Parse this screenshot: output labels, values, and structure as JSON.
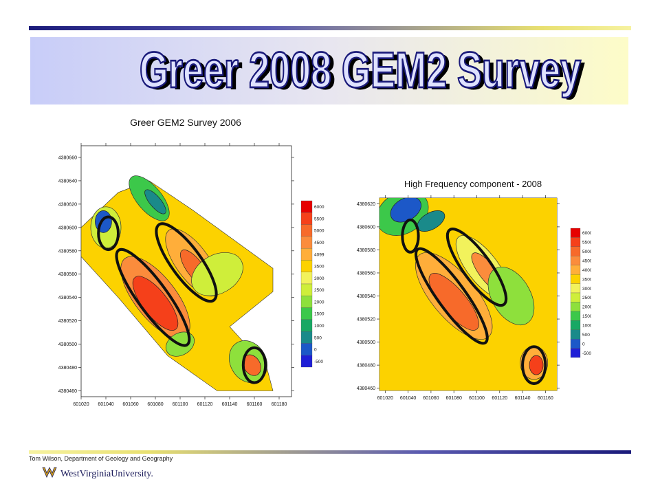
{
  "slide_title": "Greer 2008 GEM2 Survey",
  "footer": {
    "author": "Tom Wilson, Department of Geology and Geography",
    "logo_text": "WestVirginiaUniversity."
  },
  "colors": {
    "background": "#ffcc00",
    "accent_navy": "#1a1a7a",
    "title_fill": "#dfe2ff",
    "ellipse": "#111111"
  },
  "chart_data": [
    {
      "type": "heatmap",
      "title": "Greer GEM2 Survey 2006",
      "x_ticks": [
        "601020",
        "601040",
        "601060",
        "601080",
        "601100",
        "601120",
        "601140",
        "601160",
        "601180"
      ],
      "y_ticks": [
        "4380660",
        "4380640",
        "4380620",
        "4380600",
        "4380580",
        "4380560",
        "4380540",
        "4380520",
        "4380500",
        "4380480",
        "4380460"
      ],
      "xlim": [
        601020,
        601190
      ],
      "ylim": [
        4380455,
        4380670
      ],
      "colorbar": {
        "labels": [
          "6000",
          "5500",
          "5000",
          "4500",
          "4099",
          "3500",
          "3000",
          "2500",
          "2000",
          "1500",
          "1000",
          "500",
          "0",
          "-500"
        ],
        "colors": [
          "#e60000",
          "#f5401a",
          "#f76a2a",
          "#fb8c3c",
          "#ffae3a",
          "#fcd200",
          "#f2f25c",
          "#cfee3a",
          "#8ee03c",
          "#3cc84a",
          "#18a864",
          "#1a8a8a",
          "#1c58c8",
          "#1f1fd6"
        ]
      },
      "features": [
        {
          "name": "ellipse-nw",
          "center": [
            601042,
            4380595
          ],
          "rx": 8,
          "ry": 14
        },
        {
          "name": "ellipse-sw-long",
          "center": [
            601078,
            4380540
          ],
          "rx": 12,
          "ry": 50
        },
        {
          "name": "ellipse-ne-long",
          "center": [
            601105,
            4380570
          ],
          "rx": 12,
          "ry": 40
        },
        {
          "name": "ellipse-se",
          "center": [
            601160,
            4380482
          ],
          "rx": 9,
          "ry": 15
        }
      ]
    },
    {
      "type": "heatmap",
      "title": "High Frequency component - 2008",
      "x_ticks": [
        "601020",
        "601040",
        "601060",
        "601080",
        "601100",
        "601120",
        "601140",
        "601160"
      ],
      "y_ticks": [
        "4380620",
        "4380600",
        "4380580",
        "4380560",
        "4380540",
        "4380520",
        "4380500",
        "4380480",
        "4380460"
      ],
      "xlim": [
        601015,
        601170
      ],
      "ylim": [
        4380458,
        4380625
      ],
      "colorbar": {
        "labels": [
          "6000",
          "5500",
          "5000",
          "4500",
          "4000",
          "3500",
          "3000",
          "2500",
          "2000",
          "1500",
          "1000",
          "500",
          "0",
          "-500"
        ],
        "colors": [
          "#e60000",
          "#f5401a",
          "#f76a2a",
          "#fb8c3c",
          "#ffae3a",
          "#fcd200",
          "#f2f25c",
          "#cfee3a",
          "#8ee03c",
          "#3cc84a",
          "#18a864",
          "#1a8a8a",
          "#1c58c8",
          "#1f1fd6"
        ]
      },
      "features": [
        {
          "name": "ellipse-nw",
          "center": [
            601042,
            4380592
          ],
          "rx": 7,
          "ry": 14
        },
        {
          "name": "ellipse-sw-long",
          "center": [
            601078,
            4380540
          ],
          "rx": 12,
          "ry": 50
        },
        {
          "name": "ellipse-ne-long",
          "center": [
            601100,
            4380565
          ],
          "rx": 12,
          "ry": 40
        },
        {
          "name": "ellipse-se",
          "center": [
            601150,
            4380480
          ],
          "rx": 10,
          "ry": 16
        }
      ]
    }
  ]
}
